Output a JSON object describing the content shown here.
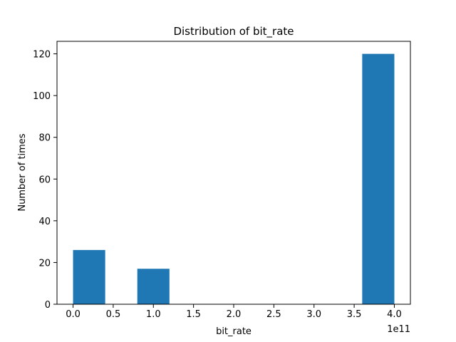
{
  "chart_data": {
    "type": "bar",
    "title": "Distribution of bit_rate",
    "xlabel": "bit_rate",
    "ylabel": "Number of times",
    "x_offset_label": "1e11",
    "x_tick_values": [
      0.0,
      0.5,
      1.0,
      1.5,
      2.0,
      2.5,
      3.0,
      3.5,
      4.0
    ],
    "x_tick_labels": [
      "0.0",
      "0.5",
      "1.0",
      "1.5",
      "2.0",
      "2.5",
      "3.0",
      "3.5",
      "4.0"
    ],
    "y_tick_values": [
      0,
      20,
      40,
      60,
      80,
      100,
      120
    ],
    "y_tick_labels": [
      "0",
      "20",
      "40",
      "60",
      "80",
      "100",
      "120"
    ],
    "xlim": [
      -0.2,
      4.2
    ],
    "ylim": [
      0,
      126
    ],
    "bins": [
      {
        "start": 0.0,
        "end": 0.4,
        "count": 26
      },
      {
        "start": 0.4,
        "end": 0.8,
        "count": 0
      },
      {
        "start": 0.8,
        "end": 1.2,
        "count": 17
      },
      {
        "start": 1.2,
        "end": 1.6,
        "count": 0
      },
      {
        "start": 1.6,
        "end": 2.0,
        "count": 0
      },
      {
        "start": 2.0,
        "end": 2.4,
        "count": 0
      },
      {
        "start": 2.4,
        "end": 2.8,
        "count": 0
      },
      {
        "start": 2.8,
        "end": 3.2,
        "count": 0
      },
      {
        "start": 3.2,
        "end": 3.6,
        "count": 0
      },
      {
        "start": 3.6,
        "end": 4.0,
        "count": 120
      }
    ],
    "bar_color": "#1f77b4",
    "grid": false,
    "legend": "none"
  }
}
